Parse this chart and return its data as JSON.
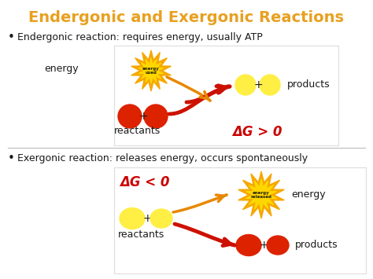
{
  "title": "Endergonic and Exergonic Reactions",
  "title_color": "#E8A020",
  "bg_color": "#FFFFFF",
  "bullet1": "Endergonic reaction: requires energy, usually ATP",
  "bullet2": "Exergonic reaction: releases energy, occurs spontaneously",
  "delta_g_pos": "ΔG > 0",
  "delta_g_neg": "ΔG < 0",
  "delta_g_color": "#CC0000",
  "label_color": "#1a1a1a",
  "energy_label": "energy",
  "products_label": "products",
  "reactants_label": "reactants",
  "energy_used_label": "energy\nused",
  "energy_released_label": "energy\nreleased",
  "red_circle_color": "#DD2200",
  "yellow_circle_color": "#FFEE44",
  "orange_star_outer": "#F5A800",
  "orange_star_inner": "#FFD700",
  "arrow_red": "#CC1100",
  "arrow_orange": "#E88800",
  "divider_color": "#BBBBBB",
  "box_color": "#DDDDDD"
}
